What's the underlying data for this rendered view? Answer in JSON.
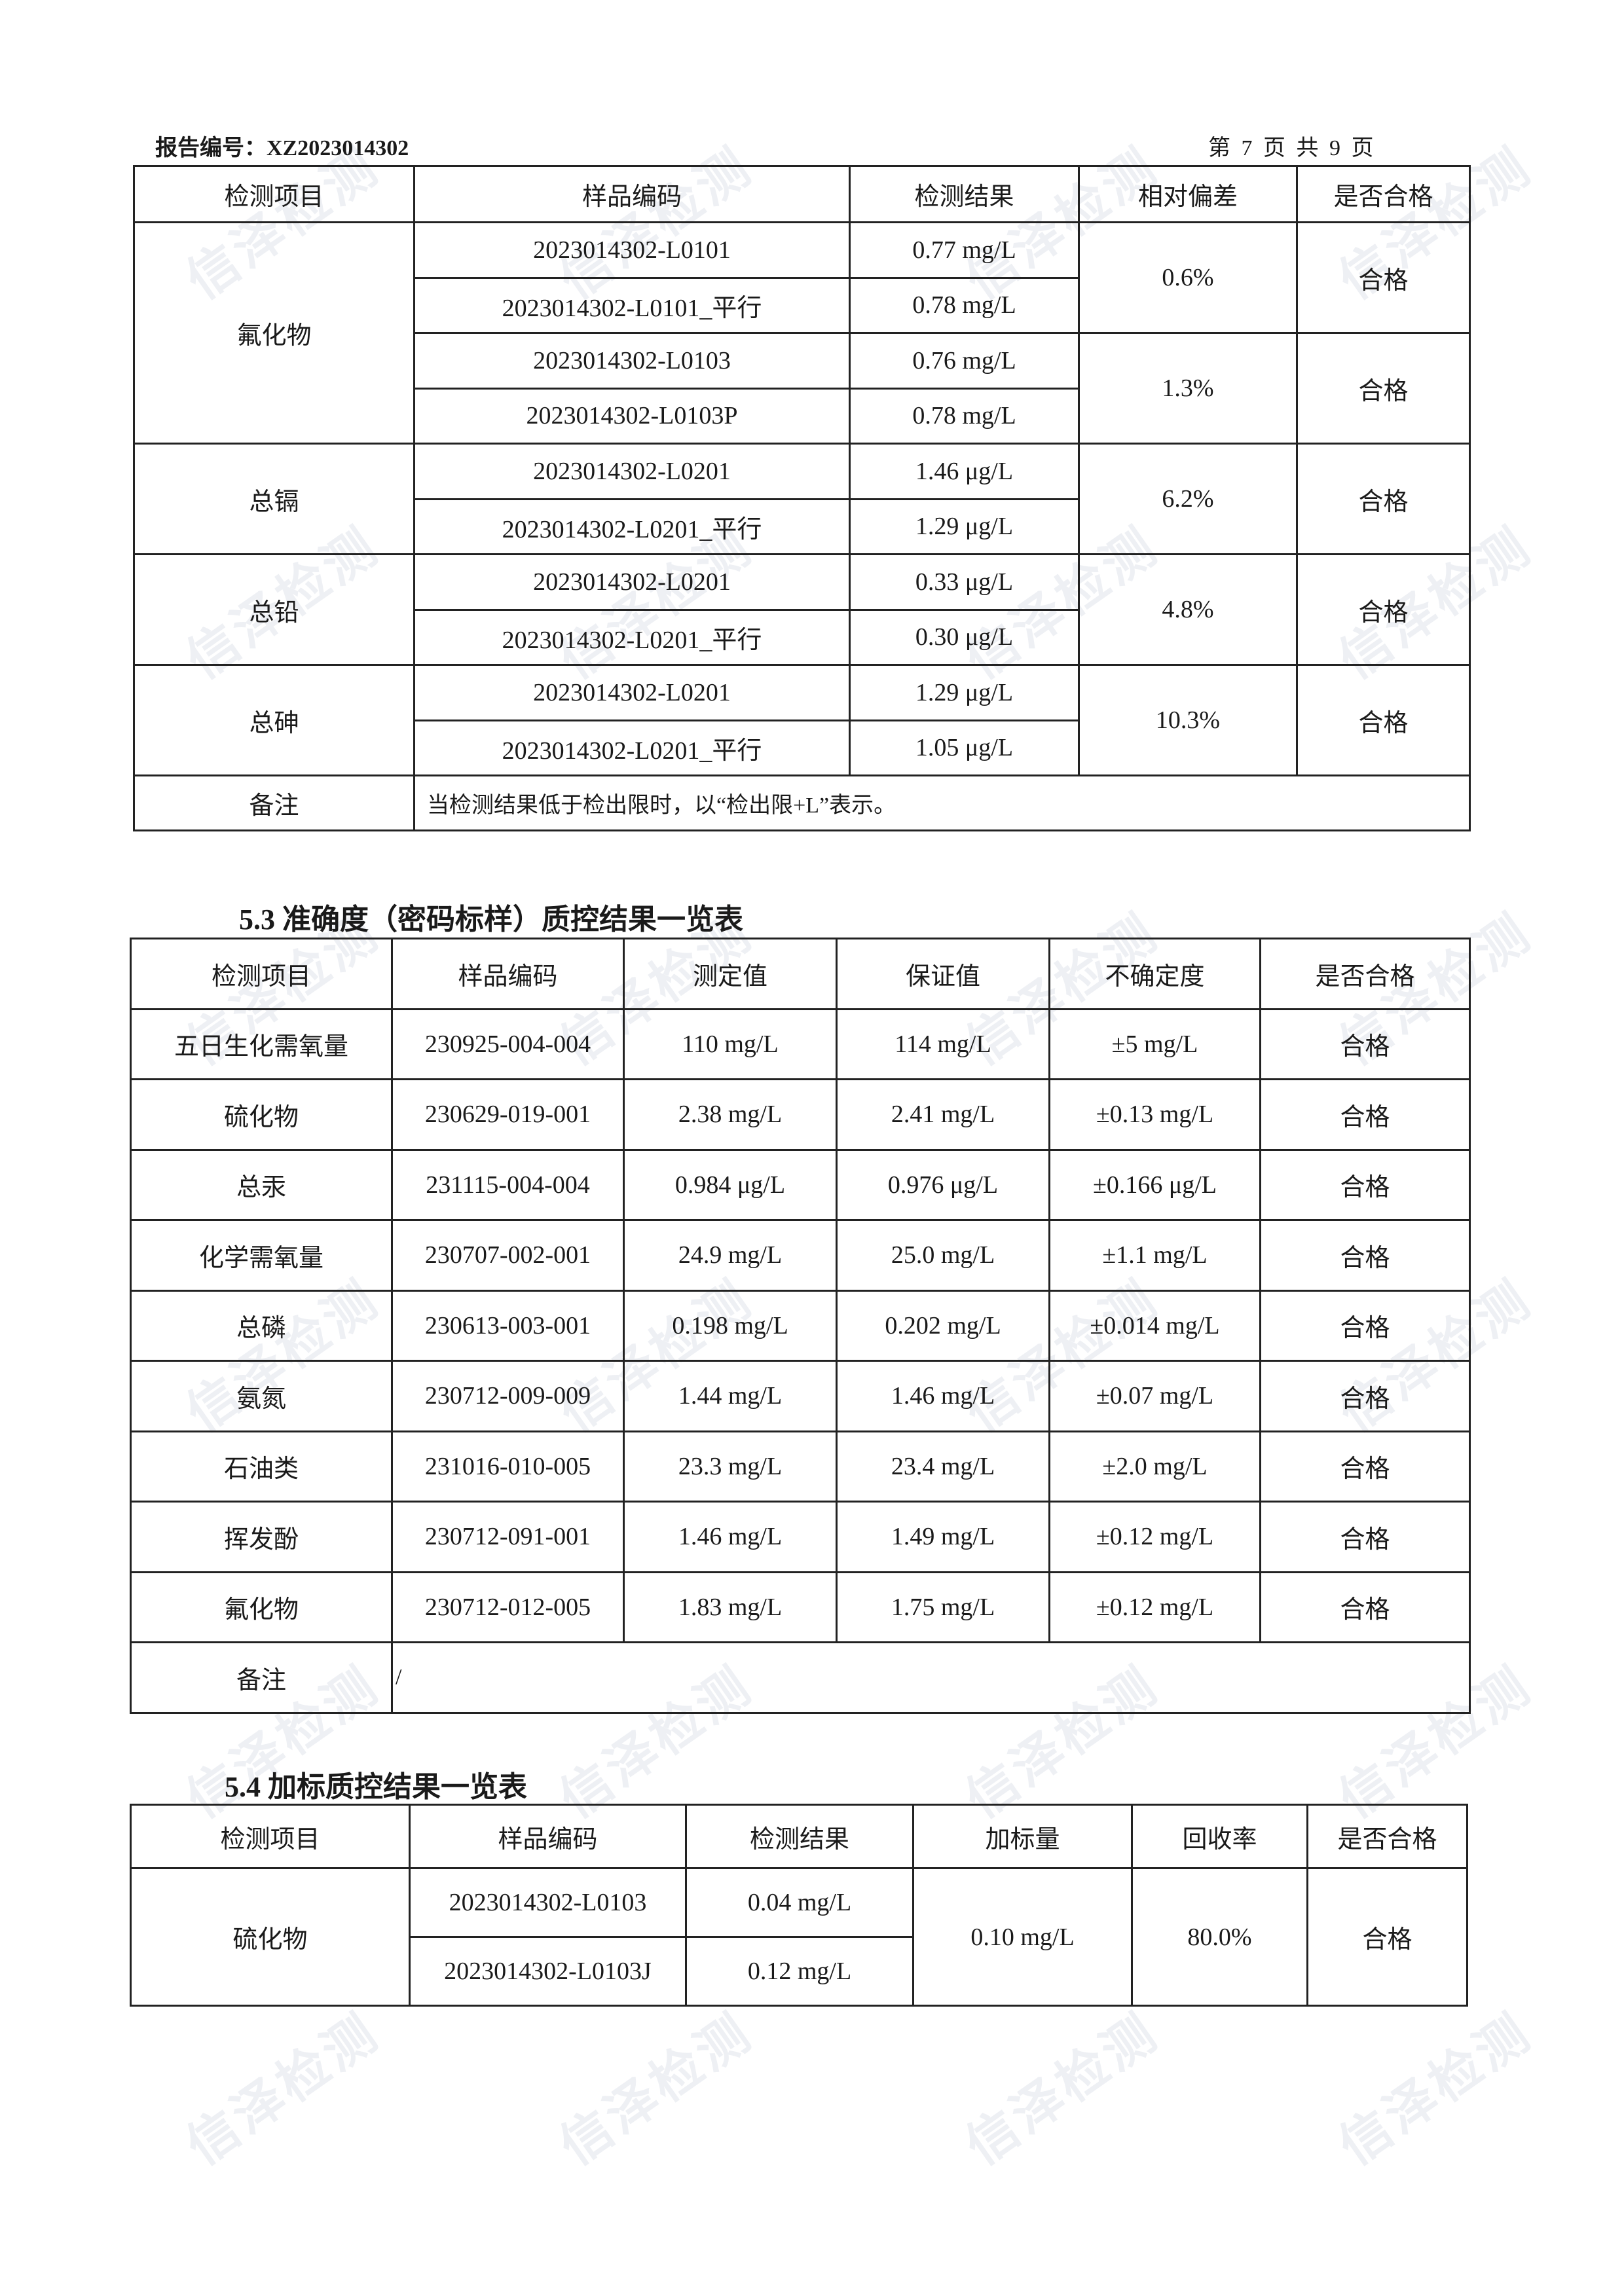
{
  "header": {
    "report_no_label": "报告编号：",
    "report_no": "XZ2023014302",
    "page_info": "第 7 页 共 9 页"
  },
  "watermark": "信泽检测",
  "table_precision": {
    "columns": [
      "检测项目",
      "样品编码",
      "检测结果",
      "相对偏差",
      "是否合格"
    ],
    "groups": [
      {
        "item": "氟化物",
        "pairs": [
          {
            "rows": [
              [
                "2023014302-L0101",
                "0.77 mg/L"
              ],
              [
                "2023014302-L0101_平行",
                "0.78 mg/L"
              ]
            ],
            "deviation": "0.6%",
            "pass": "合格"
          },
          {
            "rows": [
              [
                "2023014302-L0103",
                "0.76 mg/L"
              ],
              [
                "2023014302-L0103P",
                "0.78 mg/L"
              ]
            ],
            "deviation": "1.3%",
            "pass": "合格"
          }
        ]
      },
      {
        "item": "总镉",
        "pairs": [
          {
            "rows": [
              [
                "2023014302-L0201",
                "1.46 μg/L"
              ],
              [
                "2023014302-L0201_平行",
                "1.29 μg/L"
              ]
            ],
            "deviation": "6.2%",
            "pass": "合格"
          }
        ]
      },
      {
        "item": "总铅",
        "pairs": [
          {
            "rows": [
              [
                "2023014302-L0201",
                "0.33 μg/L"
              ],
              [
                "2023014302-L0201_平行",
                "0.30 μg/L"
              ]
            ],
            "deviation": "4.8%",
            "pass": "合格"
          }
        ]
      },
      {
        "item": "总砷",
        "pairs": [
          {
            "rows": [
              [
                "2023014302-L0201",
                "1.29 μg/L"
              ],
              [
                "2023014302-L0201_平行",
                "1.05 μg/L"
              ]
            ],
            "deviation": "10.3%",
            "pass": "合格"
          }
        ]
      }
    ],
    "remark_label": "备注",
    "remark": "当检测结果低于检出限时，以“检出限+L”表示。"
  },
  "section_53": {
    "title": "5.3 准确度（密码标样）质控结果一览表",
    "columns": [
      "检测项目",
      "样品编码",
      "测定值",
      "保证值",
      "不确定度",
      "是否合格"
    ],
    "rows": [
      [
        "五日生化需氧量",
        "230925-004-004",
        "110 mg/L",
        "114 mg/L",
        "±5 mg/L",
        "合格"
      ],
      [
        "硫化物",
        "230629-019-001",
        "2.38 mg/L",
        "2.41 mg/L",
        "±0.13 mg/L",
        "合格"
      ],
      [
        "总汞",
        "231115-004-004",
        "0.984 μg/L",
        "0.976 μg/L",
        "±0.166 μg/L",
        "合格"
      ],
      [
        "化学需氧量",
        "230707-002-001",
        "24.9 mg/L",
        "25.0 mg/L",
        "±1.1 mg/L",
        "合格"
      ],
      [
        "总磷",
        "230613-003-001",
        "0.198 mg/L",
        "0.202 mg/L",
        "±0.014 mg/L",
        "合格"
      ],
      [
        "氨氮",
        "230712-009-009",
        "1.44 mg/L",
        "1.46 mg/L",
        "±0.07 mg/L",
        "合格"
      ],
      [
        "石油类",
        "231016-010-005",
        "23.3 mg/L",
        "23.4 mg/L",
        "±2.0 mg/L",
        "合格"
      ],
      [
        "挥发酚",
        "230712-091-001",
        "1.46 mg/L",
        "1.49 mg/L",
        "±0.12 mg/L",
        "合格"
      ],
      [
        "氟化物",
        "230712-012-005",
        "1.83 mg/L",
        "1.75 mg/L",
        "±0.12 mg/L",
        "合格"
      ]
    ],
    "remark_label": "备注",
    "remark": "/"
  },
  "section_54": {
    "title": "5.4 加标质控结果一览表",
    "columns": [
      "检测项目",
      "样品编码",
      "检测结果",
      "加标量",
      "回收率",
      "是否合格"
    ],
    "item": "硫化物",
    "rows": [
      [
        "2023014302-L0103",
        "0.04 mg/L"
      ],
      [
        "2023014302-L0103J",
        "0.12 mg/L"
      ]
    ],
    "spike": "0.10 mg/L",
    "recovery": "80.0%",
    "pass": "合格"
  }
}
